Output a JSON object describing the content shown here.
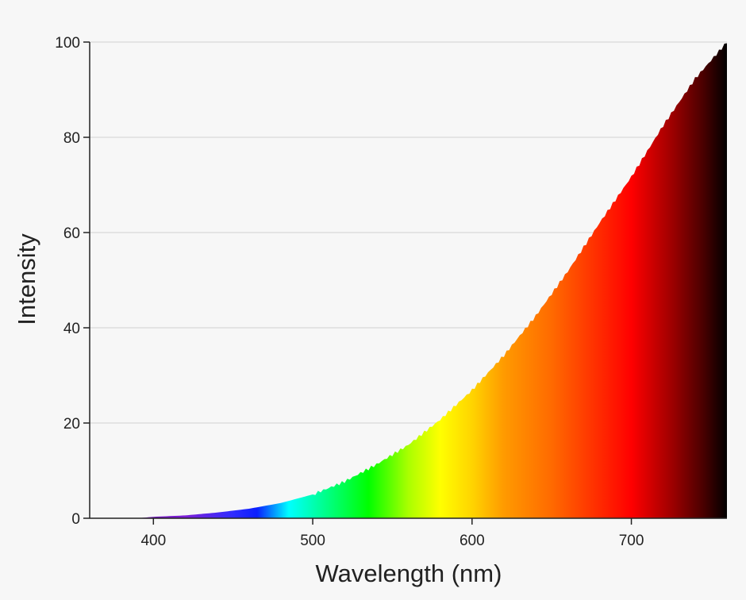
{
  "chart_data": {
    "type": "area",
    "xlabel": "Wavelength (nm)",
    "ylabel": "Intensity",
    "xlim": [
      360,
      760
    ],
    "ylim": [
      0,
      100
    ],
    "x_ticks": [
      "400",
      "500",
      "600",
      "700"
    ],
    "y_ticks": [
      "0",
      "20",
      "40",
      "60",
      "80",
      "100"
    ],
    "grid": true,
    "legend": "none",
    "fill": "visible spectrum gradient (violet to black)",
    "x": [
      390,
      400,
      420,
      440,
      460,
      480,
      500,
      520,
      540,
      560,
      580,
      600,
      620,
      640,
      660,
      680,
      700,
      720,
      740,
      760
    ],
    "y": [
      0,
      0.3,
      0.6,
      1.2,
      2.0,
      3.2,
      5.0,
      7.7,
      11.3,
      15.4,
      20.7,
      26.9,
      34.2,
      42.5,
      51.8,
      62.0,
      71.7,
      82.5,
      92.3,
      100
    ],
    "gradient_stops": [
      {
        "wavelength": 390,
        "color": "#6a0dad"
      },
      {
        "wavelength": 420,
        "color": "#7d1fd6"
      },
      {
        "wavelength": 450,
        "color": "#2f2cff"
      },
      {
        "wavelength": 465,
        "color": "#0a1fff"
      },
      {
        "wavelength": 485,
        "color": "#00ffff"
      },
      {
        "wavelength": 500,
        "color": "#00ffb3"
      },
      {
        "wavelength": 535,
        "color": "#00ff00"
      },
      {
        "wavelength": 560,
        "color": "#aaff00"
      },
      {
        "wavelength": 580,
        "color": "#ffff00"
      },
      {
        "wavelength": 600,
        "color": "#ffd400"
      },
      {
        "wavelength": 620,
        "color": "#ff9a00"
      },
      {
        "wavelength": 650,
        "color": "#ff6a00"
      },
      {
        "wavelength": 680,
        "color": "#ff2a00"
      },
      {
        "wavelength": 700,
        "color": "#ff0000"
      },
      {
        "wavelength": 725,
        "color": "#a00000"
      },
      {
        "wavelength": 745,
        "color": "#4a0000"
      },
      {
        "wavelength": 760,
        "color": "#000000"
      }
    ]
  }
}
